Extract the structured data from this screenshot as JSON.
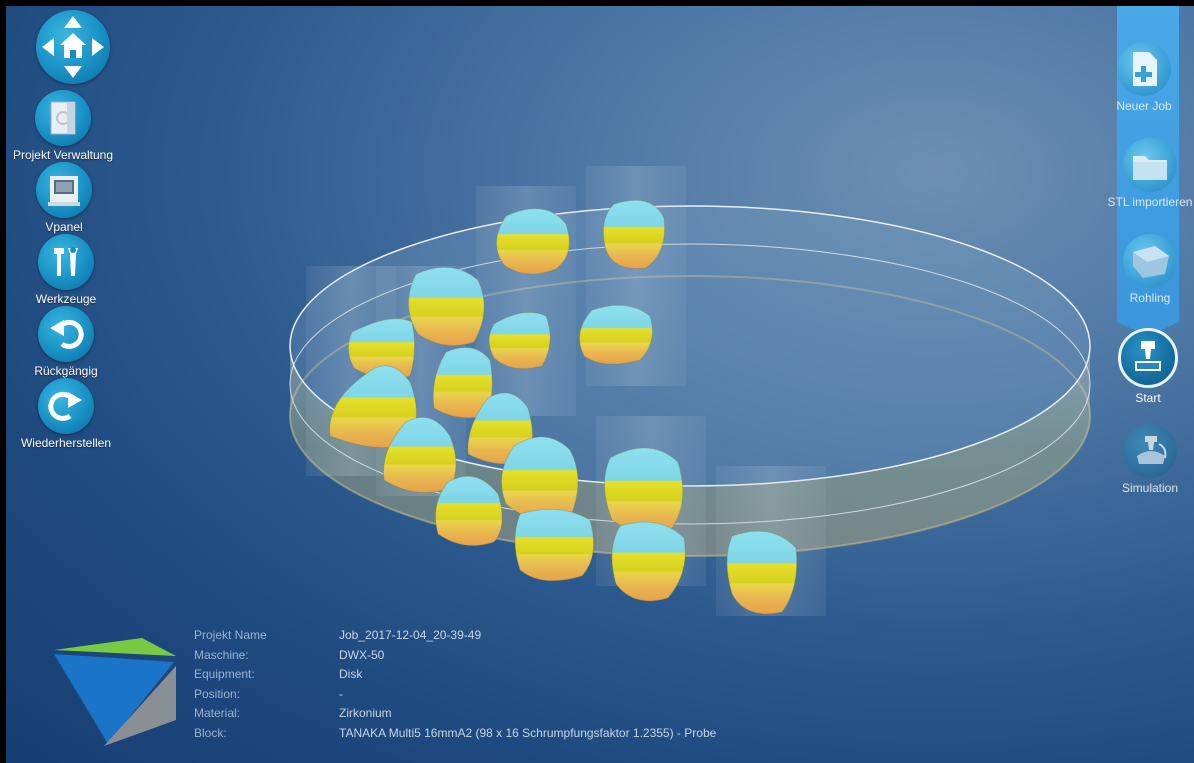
{
  "left_toolbar": {
    "nav_icon": "home-arrows-icon",
    "items": [
      {
        "label": "Projekt Verwaltung",
        "icon": "project-folder-icon"
      },
      {
        "label": "Vpanel",
        "icon": "vpanel-icon"
      },
      {
        "label": "Werkzeuge",
        "icon": "tools-icon"
      },
      {
        "label": "Rückgängig",
        "icon": "undo-icon"
      },
      {
        "label": "Wiederherstellen",
        "icon": "redo-icon"
      }
    ]
  },
  "right_toolbar": {
    "items": [
      {
        "label": "Neuer Job",
        "icon": "new-file-icon"
      },
      {
        "label": "STL importieren",
        "icon": "folder-icon"
      },
      {
        "label": "Rohling",
        "icon": "blank-disk-icon"
      },
      {
        "label": "Start",
        "icon": "milling-start-icon"
      },
      {
        "label": "Simulation",
        "icon": "simulation-icon"
      }
    ],
    "active": "Start"
  },
  "info": {
    "rows": [
      {
        "key": "Projekt Name",
        "value": "Job_2017-12-04_20-39-49"
      },
      {
        "key": "Maschine:",
        "value": "DWX-50"
      },
      {
        "key": "Equipment:",
        "value": "Disk"
      },
      {
        "key": "Position:",
        "value": "-"
      },
      {
        "key": "Material:",
        "value": "Zirkonium"
      },
      {
        "key": "Block:",
        "value": "TANAKA Multi5 16mmA2 (98 x 16 Schrumpfungsfaktor 1.2355) - Probe"
      }
    ]
  },
  "colors": {
    "accent_blue": "#1890c4",
    "right_bar": "#3b96dc",
    "tooth_cyan": "#7fd6e6",
    "tooth_yellow": "#e6e02a",
    "tooth_orange": "#e8a24a",
    "logo_green": "#7ac943",
    "logo_blue": "#1a74c8",
    "logo_gray": "#8a8f96"
  }
}
